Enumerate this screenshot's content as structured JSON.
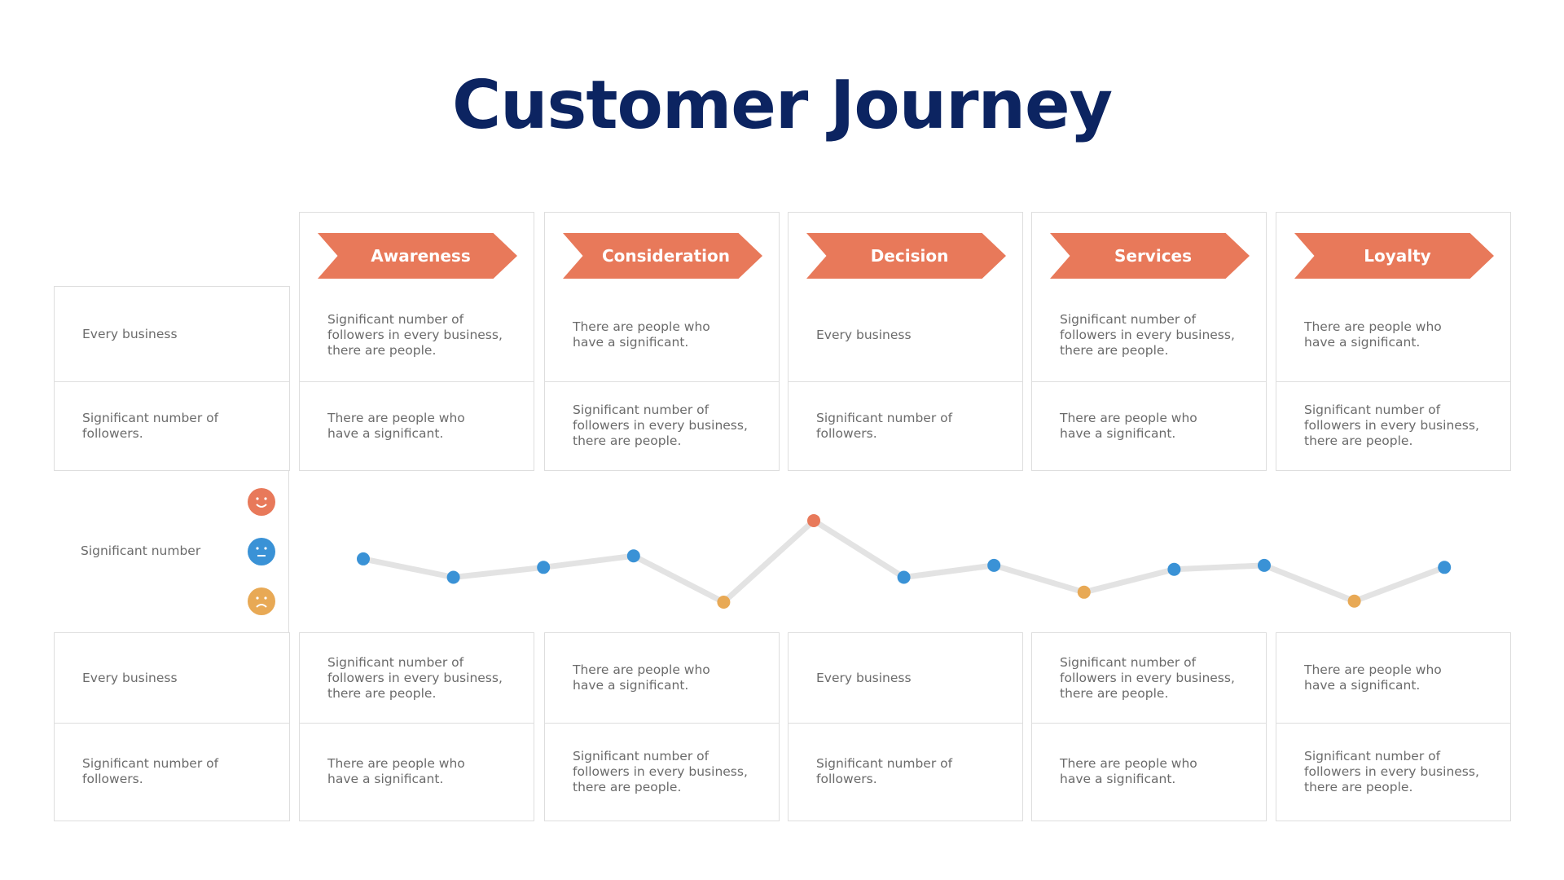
{
  "title": "Customer Journey",
  "colors": {
    "title": "#0c2461",
    "accent": "#e8795a",
    "positive": "#e8795a",
    "neutral": "#3a92d6",
    "negative": "#e8a955",
    "line": "#e3e3e3",
    "border": "#dedede"
  },
  "left_column": {
    "top": [
      "Every business",
      "Significant number of\nfollowers."
    ],
    "middle": "Significant number",
    "bottom": [
      "Every business",
      "Significant number of\nfollowers."
    ]
  },
  "mood_icons": [
    {
      "name": "happy-face-icon",
      "color": "#e8795a"
    },
    {
      "name": "neutral-face-icon",
      "color": "#3a92d6"
    },
    {
      "name": "sad-face-icon",
      "color": "#e8a955"
    }
  ],
  "stages": [
    {
      "label": "Awareness",
      "top": [
        "Significant number of\nfollowers in every business,\nthere are people.",
        "There are people who\nhave a significant."
      ],
      "bottom": [
        "Significant number of\nfollowers in every business,\nthere are people.",
        "There are people who\nhave a significant."
      ]
    },
    {
      "label": "Consideration",
      "top": [
        "There are people who\nhave a significant.",
        "Significant number of\nfollowers in every business,\nthere are people."
      ],
      "bottom": [
        "There are people who\nhave a significant.",
        "Significant number of\nfollowers in every business,\nthere are people."
      ]
    },
    {
      "label": "Decision",
      "top": [
        "Every business",
        "Significant number of\nfollowers."
      ],
      "bottom": [
        "Every business",
        "Significant number of\nfollowers."
      ]
    },
    {
      "label": "Services",
      "top": [
        "Significant number of\nfollowers in every business,\nthere are people.",
        "There are people who\nhave a significant."
      ],
      "bottom": [
        "Significant number of\nfollowers in every business,\nthere are people.",
        "There are people who\nhave a significant."
      ]
    },
    {
      "label": "Loyalty",
      "top": [
        "There are people who\nhave a significant.",
        "Significant number of\nfollowers in every business,\nthere are people."
      ],
      "bottom": [
        "There are people who\nhave a significant.",
        "Significant number of\nfollowers in every business,\nthere are people."
      ]
    }
  ],
  "chart_data": {
    "type": "line",
    "y_scale": "sentiment: -1 sad, 0 neutral, 1 happy",
    "ylim": [
      -1,
      1
    ],
    "points": [
      {
        "value": -0.13,
        "mood": "neutral"
      },
      {
        "value": -0.5,
        "mood": "neutral"
      },
      {
        "value": -0.3,
        "mood": "neutral"
      },
      {
        "value": -0.07,
        "mood": "neutral"
      },
      {
        "value": -1.0,
        "mood": "negative"
      },
      {
        "value": 0.64,
        "mood": "positive"
      },
      {
        "value": -0.5,
        "mood": "neutral"
      },
      {
        "value": -0.26,
        "mood": "neutral"
      },
      {
        "value": -0.8,
        "mood": "negative"
      },
      {
        "value": -0.34,
        "mood": "neutral"
      },
      {
        "value": -0.26,
        "mood": "neutral"
      },
      {
        "value": -0.98,
        "mood": "negative"
      },
      {
        "value": -0.3,
        "mood": "neutral"
      }
    ]
  }
}
